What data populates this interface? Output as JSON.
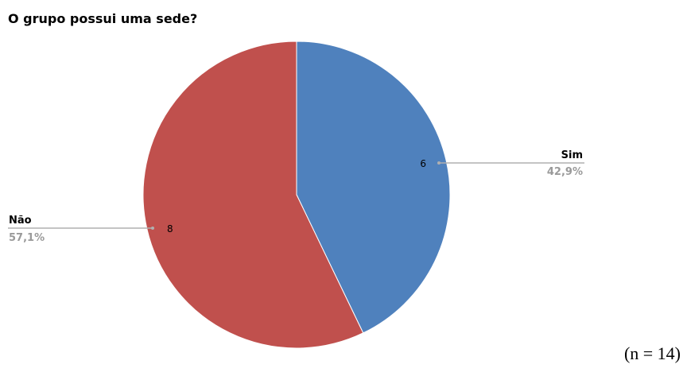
{
  "chart_data": {
    "type": "pie",
    "title": "O grupo possui uma sede?",
    "categories": [
      "Sim",
      "Não"
    ],
    "values": [
      6,
      8
    ],
    "percent_labels": [
      "42,9%",
      "57,1%"
    ],
    "colors": [
      "#4f81bd",
      "#c0504d"
    ],
    "legend": "none",
    "sample_size_note": "(n = 14)"
  }
}
